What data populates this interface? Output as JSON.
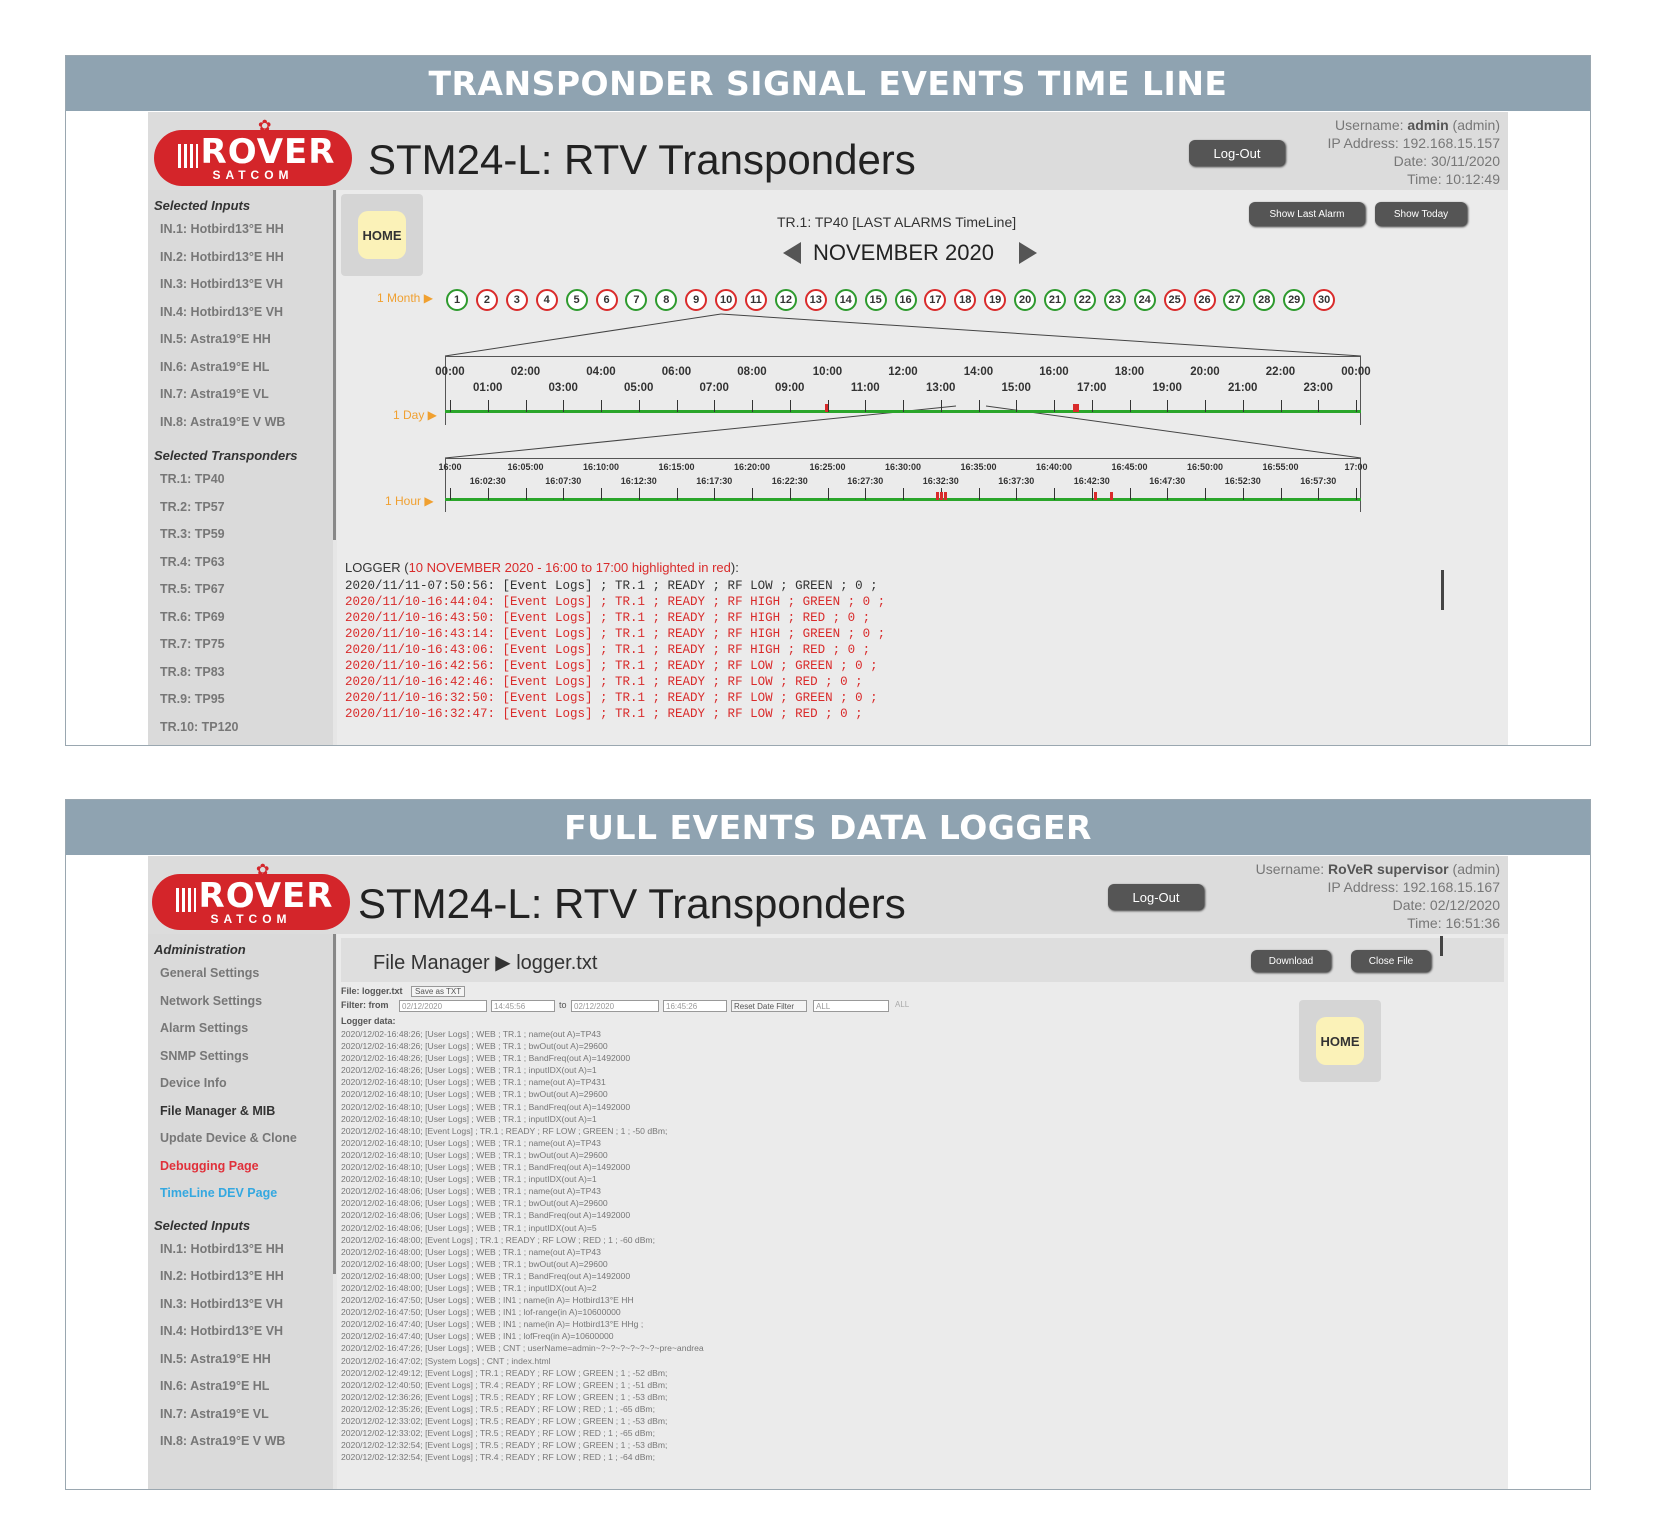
{
  "panel1": {
    "header": "TRANSPONDER SIGNAL EVENTS TIME LINE",
    "app_title": "STM24-L: RTV Transponders",
    "logo": {
      "main": "ROVER",
      "sub": "SATCOM"
    },
    "logout_label": "Log-Out",
    "user": {
      "username_label": "Username:",
      "username": "admin",
      "role": "(admin)",
      "ip": "IP Address: 192.168.15.157",
      "date": "Date: 30/11/2020",
      "time": "Time: 10:12:49"
    },
    "sidebar": {
      "inputs_heading": "Selected Inputs",
      "inputs": [
        "IN.1: Hotbird13°E HH",
        "IN.2: Hotbird13°E HH",
        "IN.3: Hotbird13°E VH",
        "IN.4: Hotbird13°E VH",
        "IN.5: Astra19°E HH",
        "IN.6: Astra19°E HL",
        "IN.7: Astra19°E VL",
        "IN.8: Astra19°E V WB"
      ],
      "transponders_heading": "Selected Transponders",
      "transponders": [
        "TR.1: TP40",
        "TR.2: TP57",
        "TR.3: TP59",
        "TR.4: TP63",
        "TR.5: TP67",
        "TR.6: TP69",
        "TR.7: TP75",
        "TR.8: TP83",
        "TR.9: TP95",
        "TR.10: TP120"
      ]
    },
    "home_label": "HOME",
    "timeline_title": "TR.1: TP40 [LAST ALARMS TimeLine]",
    "month_title": "NOVEMBER 2020",
    "show_last_alarm": "Show Last Alarm",
    "show_today": "Show Today",
    "month_label": "1 Month ▶",
    "day_label": "1 Day ▶",
    "hour_label": "1 Hour ▶",
    "days": [
      {
        "n": "1",
        "s": "ok"
      },
      {
        "n": "2",
        "s": "alarm"
      },
      {
        "n": "3",
        "s": "alarm"
      },
      {
        "n": "4",
        "s": "alarm"
      },
      {
        "n": "5",
        "s": "ok"
      },
      {
        "n": "6",
        "s": "alarm"
      },
      {
        "n": "7",
        "s": "ok"
      },
      {
        "n": "8",
        "s": "ok"
      },
      {
        "n": "9",
        "s": "alarm"
      },
      {
        "n": "10",
        "s": "alarm"
      },
      {
        "n": "11",
        "s": "alarm"
      },
      {
        "n": "12",
        "s": "ok"
      },
      {
        "n": "13",
        "s": "alarm"
      },
      {
        "n": "14",
        "s": "ok"
      },
      {
        "n": "15",
        "s": "ok"
      },
      {
        "n": "16",
        "s": "ok"
      },
      {
        "n": "17",
        "s": "alarm"
      },
      {
        "n": "18",
        "s": "alarm"
      },
      {
        "n": "19",
        "s": "alarm"
      },
      {
        "n": "20",
        "s": "ok"
      },
      {
        "n": "21",
        "s": "ok"
      },
      {
        "n": "22",
        "s": "ok"
      },
      {
        "n": "23",
        "s": "ok"
      },
      {
        "n": "24",
        "s": "ok"
      },
      {
        "n": "25",
        "s": "alarm"
      },
      {
        "n": "26",
        "s": "alarm"
      },
      {
        "n": "27",
        "s": "ok"
      },
      {
        "n": "28",
        "s": "ok"
      },
      {
        "n": "29",
        "s": "ok"
      },
      {
        "n": "30",
        "s": "alarm"
      }
    ],
    "day_ticks_top": [
      "00:00",
      "02:00",
      "04:00",
      "06:00",
      "08:00",
      "10:00",
      "12:00",
      "14:00",
      "16:00",
      "18:00",
      "20:00",
      "22:00",
      "00:00"
    ],
    "day_ticks_bottom": [
      "01:00",
      "03:00",
      "05:00",
      "07:00",
      "09:00",
      "11:00",
      "13:00",
      "15:00",
      "17:00",
      "19:00",
      "21:00",
      "23:00"
    ],
    "hour_ticks_top": [
      "16:00",
      "16:05:00",
      "16:10:00",
      "16:15:00",
      "16:20:00",
      "16:25:00",
      "16:30:00",
      "16:35:00",
      "16:40:00",
      "16:45:00",
      "16:50:00",
      "16:55:00",
      "17:00"
    ],
    "hour_ticks_bottom": [
      "16:02:30",
      "16:07:30",
      "16:12:30",
      "16:17:30",
      "16:22:30",
      "16:27:30",
      "16:32:30",
      "16:37:30",
      "16:42:30",
      "16:47:30",
      "16:52:30",
      "16:57:30"
    ],
    "logger_prefix": "LOGGER (",
    "logger_highlight": "10 NOVEMBER 2020 - 16:00 to 17:00 highlighted in red",
    "logger_suffix": "):",
    "log_lines": [
      {
        "t": "2020/11/11-07:50:56: [Event Logs] ; TR.1 ; READY ; RF LOW ; GREEN ; 0 ;",
        "red": false
      },
      {
        "t": "2020/11/10-16:44:04: [Event Logs] ; TR.1 ; READY ; RF HIGH ; GREEN ; 0 ;",
        "red": true
      },
      {
        "t": "2020/11/10-16:43:50: [Event Logs] ; TR.1 ; READY ; RF HIGH ; RED ; 0 ;",
        "red": true
      },
      {
        "t": "2020/11/10-16:43:14: [Event Logs] ; TR.1 ; READY ; RF HIGH ; GREEN ; 0 ;",
        "red": true
      },
      {
        "t": "2020/11/10-16:43:06: [Event Logs] ; TR.1 ; READY ; RF HIGH ; RED ; 0 ;",
        "red": true
      },
      {
        "t": "2020/11/10-16:42:56: [Event Logs] ; TR.1 ; READY ; RF LOW ; GREEN ; 0 ;",
        "red": true
      },
      {
        "t": "2020/11/10-16:42:46: [Event Logs] ; TR.1 ; READY ; RF LOW ; RED ; 0 ;",
        "red": true
      },
      {
        "t": "2020/11/10-16:32:50: [Event Logs] ; TR.1 ; READY ; RF LOW ; GREEN ; 0 ;",
        "red": true
      },
      {
        "t": "2020/11/10-16:32:47: [Event Logs] ; TR.1 ; READY ; RF LOW ; RED ; 0 ;",
        "red": true
      }
    ]
  },
  "panel2": {
    "header": "FULL EVENTS DATA LOGGER",
    "app_title": "STM24-L: RTV Transponders",
    "logo": {
      "main": "ROVER",
      "sub": "SATCOM"
    },
    "logout_label": "Log-Out",
    "user": {
      "username_label": "Username:",
      "username": "RoVeR supervisor",
      "role": "(admin)",
      "ip": "IP Address: 192.168.15.167",
      "date": "Date: 02/12/2020",
      "time": "Time: 16:51:36"
    },
    "sidebar": {
      "admin_heading": "Administration",
      "admin_items": [
        {
          "label": "General Settings",
          "color": "#777777"
        },
        {
          "label": "Network Settings",
          "color": "#777777"
        },
        {
          "label": "Alarm Settings",
          "color": "#777777"
        },
        {
          "label": "SNMP Settings",
          "color": "#777777"
        },
        {
          "label": "Device Info",
          "color": "#777777"
        },
        {
          "label": "File Manager & MIB",
          "color": "#333333"
        },
        {
          "label": "Update Device & Clone",
          "color": "#777777"
        },
        {
          "label": "Debugging Page",
          "color": "#e0303a"
        },
        {
          "label": "TimeLine DEV Page",
          "color": "#34a8e0"
        }
      ],
      "inputs_heading": "Selected Inputs",
      "inputs": [
        "IN.1: Hotbird13°E HH",
        "IN.2: Hotbird13°E HH",
        "IN.3: Hotbird13°E VH",
        "IN.4: Hotbird13°E VH",
        "IN.5: Astra19°E HH",
        "IN.6: Astra19°E HL",
        "IN.7: Astra19°E VL",
        "IN.8: Astra19°E V WB"
      ]
    },
    "file_manager_title": "File Manager ▶ logger.txt",
    "download_label": "Download",
    "close_file_label": "Close File",
    "home_label": "HOME",
    "file_label": "File: logger.txt",
    "save_as_txt": "Save as TXT",
    "filter_label": "Filter: from",
    "filter_to": "to",
    "filter_from_date": "02/12/2020",
    "filter_from_time": "14:45:56",
    "filter_to_date": "02/12/2020",
    "filter_to_time": "16:45:26",
    "reset_filter": "Reset Date Filter",
    "select_all": "ALL",
    "select_all2": "ALL",
    "logger_data_label": "Logger data:",
    "log_lines": [
      "2020/12/02-16:48:26; [User Logs] ; WEB ; TR.1 ; name(out A)=TP43",
      "2020/12/02-16:48:26; [User Logs] ; WEB ; TR.1 ; bwOut(out A)=29600",
      "2020/12/02-16:48:26; [User Logs] ; WEB ; TR.1 ; BandFreq(out A)=1492000",
      "2020/12/02-16:48:26; [User Logs] ; WEB ; TR.1 ; inputIDX(out A)=1",
      "2020/12/02-16:48:10; [User Logs] ; WEB ; TR.1 ; name(out A)=TP431",
      "2020/12/02-16:48:10; [User Logs] ; WEB ; TR.1 ; bwOut(out A)=29600",
      "2020/12/02-16:48:10; [User Logs] ; WEB ; TR.1 ; BandFreq(out A)=1492000",
      "2020/12/02-16:48:10; [User Logs] ; WEB ; TR.1 ; inputIDX(out A)=1",
      "2020/12/02-16:48:10; [Event Logs] ; TR.1 ; READY ; RF LOW ; GREEN ; 1 ; -50 dBm;",
      "2020/12/02-16:48:10; [User Logs] ; WEB ; TR.1 ; name(out A)=TP43",
      "2020/12/02-16:48:10; [User Logs] ; WEB ; TR.1 ; bwOut(out A)=29600",
      "2020/12/02-16:48:10; [User Logs] ; WEB ; TR.1 ; BandFreq(out A)=1492000",
      "2020/12/02-16:48:10; [User Logs] ; WEB ; TR.1 ; inputIDX(out A)=1",
      "2020/12/02-16:48:06; [User Logs] ; WEB ; TR.1 ; name(out A)=TP43",
      "2020/12/02-16:48:06; [User Logs] ; WEB ; TR.1 ; bwOut(out A)=29600",
      "2020/12/02-16:48:06; [User Logs] ; WEB ; TR.1 ; BandFreq(out A)=1492000",
      "2020/12/02-16:48:06; [User Logs] ; WEB ; TR.1 ; inputIDX(out A)=5",
      "2020/12/02-16:48:00; [Event Logs] ; TR.1 ; READY ; RF LOW ; RED ; 1 ; -60 dBm;",
      "2020/12/02-16:48:00; [User Logs] ; WEB ; TR.1 ; name(out A)=TP43",
      "2020/12/02-16:48:00; [User Logs] ; WEB ; TR.1 ; bwOut(out A)=29600",
      "2020/12/02-16:48:00; [User Logs] ; WEB ; TR.1 ; BandFreq(out A)=1492000",
      "2020/12/02-16:48:00; [User Logs] ; WEB ; TR.1 ; inputIDX(out A)=2",
      "2020/12/02-16:47:50; [User Logs] ; WEB ; IN1 ; name(in A)= Hotbird13°E HH",
      "2020/12/02-16:47:50; [User Logs] ; WEB ; IN1 ; lof-range(in A)=10600000",
      "2020/12/02-16:47:40; [User Logs] ; WEB ; IN1 ; name(in A)= Hotbird13°E HHg ;",
      "2020/12/02-16:47:40; [User Logs] ; WEB ; IN1 ; lofFreq(in A)=10600000",
      "2020/12/02-16:47:26; [User Logs] ; WEB ; CNT ; userName=admin~?~?~?~?~?~?~pre~andrea",
      "2020/12/02-16:47:02; [System Logs] ; CNT ; index.html",
      "2020/12/02-12:49:12; [Event Logs] ; TR.1 ; READY ; RF LOW ; GREEN ; 1 ; -52 dBm;",
      "2020/12/02-12:40:50; [Event Logs] ; TR.4 ; READY ; RF LOW ; GREEN ; 1 ; -51 dBm;",
      "2020/12/02-12:36:26; [Event Logs] ; TR.5 ; READY ; RF LOW ; GREEN ; 1 ; -53 dBm;",
      "2020/12/02-12:35:26; [Event Logs] ; TR.5 ; READY ; RF LOW ; RED ; 1 ; -65 dBm;",
      "2020/12/02-12:33:02; [Event Logs] ; TR.5 ; READY ; RF LOW ; GREEN ; 1 ; -53 dBm;",
      "2020/12/02-12:33:02; [Event Logs] ; TR.5 ; READY ; RF LOW ; RED ; 1 ; -65 dBm;",
      "2020/12/02-12:32:54; [Event Logs] ; TR.5 ; READY ; RF LOW ; GREEN ; 1 ; -53 dBm;",
      "2020/12/02-12:32:54; [Event Logs] ; TR.4 ; READY ; RF LOW ; RED ; 1 ; -64 dBm;"
    ]
  },
  "colors": {
    "header_bg": "#8fa3b1",
    "logo_red": "#d4252a",
    "ok_green": "#2e9a2e",
    "alarm_red": "#d92b2b",
    "timeline_green": "#2aa52a",
    "accent_orange": "#f0a030"
  }
}
